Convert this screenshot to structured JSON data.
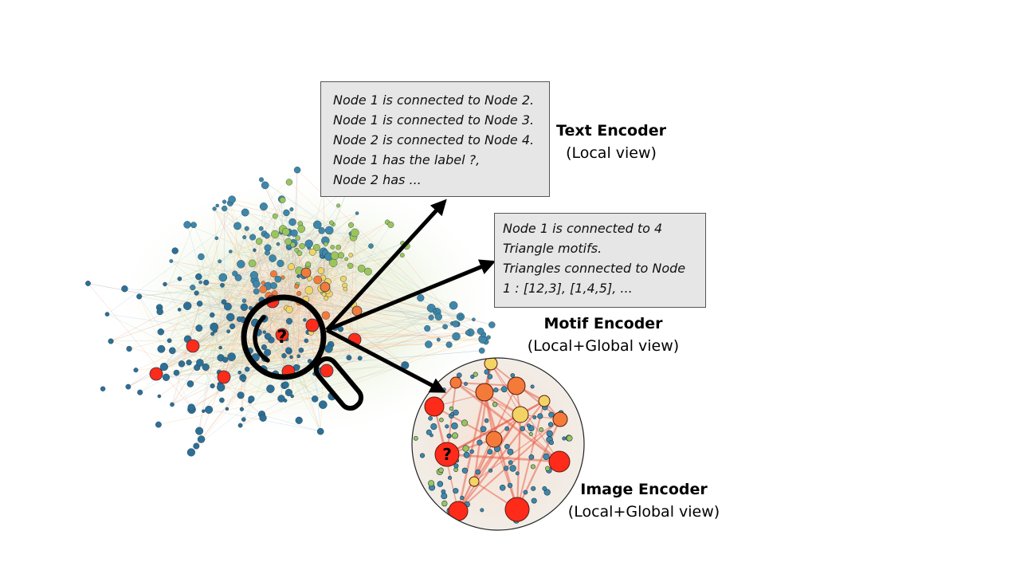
{
  "text_encoder": {
    "lines": [
      "Node 1 is connected to Node 2.",
      "Node 1 is connected to Node 3.",
      "Node 2 is connected to Node 4.",
      "Node 1 has the label ?,",
      "Node 2 has ..."
    ],
    "title": "Text Encoder",
    "subtitle": "(Local view)"
  },
  "motif_encoder": {
    "lines": [
      "Node 1 is connected to 4",
      "Triangle motifs.",
      "Triangles connected to Node",
      "1 : [12,3], [1,4,5], ..."
    ],
    "title": "Motif Encoder",
    "subtitle": "(Local+Global view)"
  },
  "image_encoder": {
    "title": "Image Encoder",
    "subtitle": "(Local+Global view)"
  },
  "query_node_mark": "?",
  "colors": {
    "red": "#ff2b1a",
    "orange": "#f47a3a",
    "yellow": "#f2d465",
    "green": "#9bc55b",
    "teal": "#3f87a8",
    "blue": "#2e6f95",
    "box_fill": "#e6e6e6",
    "arrow": "#000000"
  }
}
